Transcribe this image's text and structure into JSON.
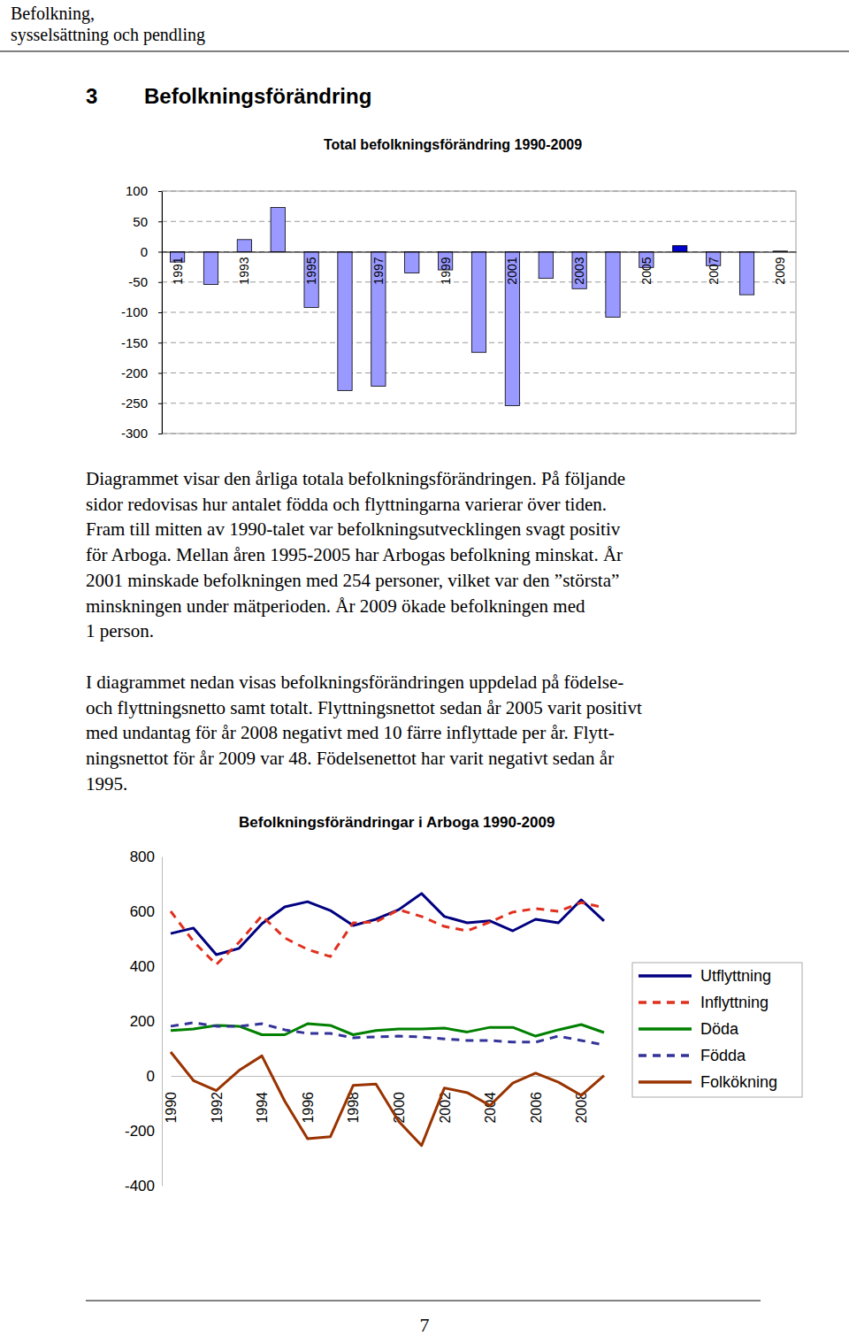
{
  "header": {
    "lines": [
      "Befolkning,",
      "sysselsättning och pendling"
    ]
  },
  "section": {
    "number": "3",
    "title": "Befolkningsförändring"
  },
  "paragraphs": [
    [
      "Diagrammet visar den årliga totala befolkningsförändringen. På följande",
      "sidor redovisas hur antalet födda och flyttningarna varierar över tiden.",
      "Fram till mitten av 1990-talet var befolkningsutvecklingen svagt positiv",
      "för Arboga. Mellan åren 1995-2005 har Arbogas befolkning minskat. År",
      "2001 minskade befolkningen med 254 personer, vilket var den ”största”",
      "minskningen under mätperioden. År 2009 ökade befolkningen med",
      "1 person."
    ],
    [
      "I diagrammet nedan visas befolkningsförändringen uppdelad på födelse-",
      "och flyttningsnetto samt totalt. Flyttningsnettot sedan år 2005 varit positivt",
      "med undantag för år 2008 negativt med 10 färre inflyttade per år. Flytt-",
      "ningsnettot för år 2009 var 48. Födelsenettot har varit negativt sedan år",
      "1995."
    ]
  ],
  "chart_data": [
    {
      "type": "bar",
      "title": "Total befolkningsförändring 1990-2009",
      "categories": [
        "1991",
        null,
        "1993",
        null,
        "1995",
        null,
        "1997",
        null,
        "1999",
        null,
        "2001",
        null,
        "2003",
        null,
        "2005",
        null,
        "2007",
        null,
        "2009"
      ],
      "values": [
        -17,
        -54,
        20,
        73,
        -92,
        -229,
        -222,
        -35,
        -30,
        -166,
        -254,
        -44,
        -61,
        -108,
        -26,
        10,
        -23,
        -71,
        1
      ],
      "colors": [
        "#9999ff",
        "#9999ff",
        "#9999ff",
        "#9999ff",
        "#9999ff",
        "#9999ff",
        "#9999ff",
        "#9999ff",
        "#9999ff",
        "#9999ff",
        "#9999ff",
        "#9999ff",
        "#9999ff",
        "#9999ff",
        "#9999ff",
        "#0000cc",
        "#9999ff",
        "#9999ff",
        "#9999ff"
      ],
      "ylim": [
        -300,
        100
      ],
      "yticks": [
        -300,
        -250,
        -200,
        -150,
        -100,
        -50,
        0,
        50,
        100
      ],
      "grid": true
    },
    {
      "type": "line",
      "title": "Befolkningsförändringar i Arboga 1990-2009",
      "categories": [
        "1990",
        null,
        "1992",
        null,
        "1994",
        null,
        "1996",
        null,
        "1998",
        null,
        "2000",
        null,
        "2002",
        null,
        "2004",
        null,
        "2006",
        null,
        "2008",
        null
      ],
      "series": [
        {
          "name": "Utflyttning",
          "color": "#000080",
          "line_style": "solid",
          "values": [
            519,
            539,
            442,
            465,
            555,
            616,
            635,
            603,
            548,
            571,
            606,
            665,
            581,
            558,
            565,
            529,
            571,
            558,
            642,
            565
          ]
        },
        {
          "name": "Inflyttning",
          "color": "#e0301e",
          "line_style": "dashed",
          "values": [
            600,
            490,
            406,
            487,
            584,
            503,
            461,
            435,
            558,
            561,
            606,
            581,
            545,
            529,
            561,
            597,
            610,
            600,
            632,
            613
          ]
        },
        {
          "name": "Döda",
          "color": "#008000",
          "line_style": "solid",
          "values": [
            165,
            171,
            184,
            181,
            150,
            150,
            190,
            184,
            150,
            165,
            171,
            171,
            174,
            160,
            177,
            177,
            145,
            168,
            187,
            158
          ]
        },
        {
          "name": "Födda",
          "color": "#333399",
          "line_style": "dashed",
          "values": [
            181,
            194,
            181,
            181,
            190,
            168,
            155,
            155,
            139,
            142,
            145,
            142,
            135,
            129,
            129,
            123,
            123,
            145,
            129,
            113
          ]
        },
        {
          "name": "Folkökning",
          "color": "#993300",
          "line_style": "solid",
          "values": [
            87,
            -17,
            -54,
            20,
            73,
            -92,
            -229,
            -222,
            -35,
            -30,
            -166,
            -254,
            -44,
            -61,
            -108,
            -26,
            10,
            -23,
            -71,
            1
          ]
        }
      ],
      "ylim": [
        -400,
        800
      ],
      "yticks": [
        -400,
        -200,
        0,
        200,
        400,
        600,
        800
      ],
      "grid": false,
      "legend": "right"
    }
  ],
  "page_number": "7"
}
